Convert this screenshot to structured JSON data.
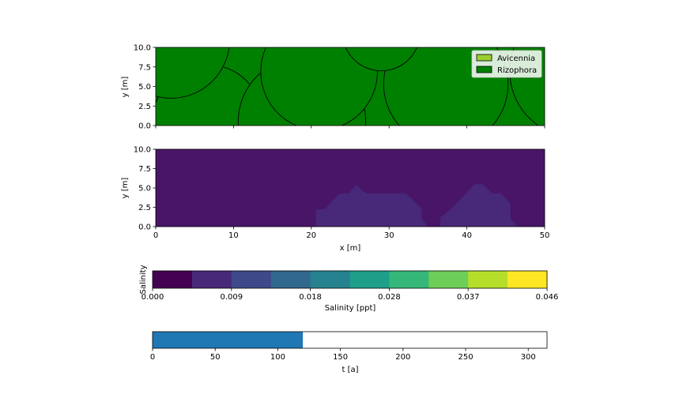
{
  "chart_data": [
    {
      "type": "scatter",
      "panel": "top",
      "description_of_marks": "tree crowns drawn as circles",
      "ylabel": "y [m]",
      "xlim": [
        0,
        50
      ],
      "ylim": [
        0,
        10
      ],
      "yticks": [
        "0.0",
        "2.5",
        "5.0",
        "7.5",
        "10.0"
      ],
      "legend": {
        "placement": "top-right",
        "entries": [
          {
            "label": "Avicennia",
            "color": "#9acd32"
          },
          {
            "label": "Rizophora",
            "color": "#008000"
          }
        ]
      },
      "background_color": "#008000",
      "trees": [
        {
          "species": "Rizophora",
          "x": 6.7,
          "y": 0.8,
          "r": 7.0
        },
        {
          "species": "Rizophora",
          "x": 18.8,
          "y": 0.5,
          "r": 8.2
        },
        {
          "species": "Rizophora",
          "x": 21.0,
          "y": 6.9,
          "r": 7.5
        },
        {
          "species": "Rizophora",
          "x": 37.3,
          "y": 5.3,
          "r": 8.0
        },
        {
          "species": "Rizophora",
          "x": 54.0,
          "y": 7.0,
          "r": 8.5
        },
        {
          "species": "Rizophora",
          "x": 2.0,
          "y": 11.0,
          "r": 7.5
        },
        {
          "species": "Rizophora",
          "x": 29.0,
          "y": 12.0,
          "r": 5.0
        }
      ]
    },
    {
      "type": "heatmap",
      "panel": "middle",
      "xlabel": "x [m]",
      "ylabel": "y [m]",
      "xlim": [
        0,
        50
      ],
      "ylim": [
        0,
        10
      ],
      "xticks": [
        "0",
        "10",
        "20",
        "30",
        "40",
        "50"
      ],
      "yticks": [
        "0.0",
        "2.5",
        "5.0",
        "7.5",
        "10.0"
      ],
      "base_color": "#481567",
      "regions": [
        {
          "color": "#482878",
          "polygon": [
            [
              20.6,
              0
            ],
            [
              20.6,
              2.2
            ],
            [
              21.8,
              2.3
            ],
            [
              23.6,
              4.3
            ],
            [
              24.8,
              4.3
            ],
            [
              25.8,
              5.4
            ],
            [
              26.6,
              4.6
            ],
            [
              27.2,
              4.3
            ],
            [
              32.2,
              4.3
            ],
            [
              34.2,
              2.3
            ],
            [
              34.2,
              1.0
            ],
            [
              35.0,
              0
            ]
          ]
        },
        {
          "color": "#482878",
          "polygon": [
            [
              36.6,
              0
            ],
            [
              36.6,
              1.2
            ],
            [
              38.0,
              2.3
            ],
            [
              41.0,
              5.5
            ],
            [
              42.0,
              5.5
            ],
            [
              43.2,
              4.3
            ],
            [
              44.4,
              4.3
            ],
            [
              45.6,
              3.0
            ],
            [
              45.6,
              1.0
            ],
            [
              46.6,
              0
            ]
          ]
        }
      ]
    },
    {
      "type": "colorbar",
      "panel": "salinity-colorbar",
      "ylabel": "Salinity",
      "xlabel": "Salinity [ppt]",
      "range": [
        0,
        0.046
      ],
      "tick_labels": [
        "0.000",
        "0.009",
        "0.018",
        "0.028",
        "0.037",
        "0.046"
      ],
      "colors": [
        "#440154",
        "#482878",
        "#3e4989",
        "#31688e",
        "#26828e",
        "#1f9e89",
        "#35b779",
        "#6ece58",
        "#b5de2b",
        "#fde725"
      ]
    },
    {
      "type": "bar",
      "panel": "time-progress",
      "xlabel": "t [a]",
      "xlim": [
        0,
        315
      ],
      "xticks": [
        "0",
        "50",
        "100",
        "150",
        "200",
        "250",
        "300"
      ],
      "progress_value": 120,
      "color": "#1f77b4"
    }
  ]
}
